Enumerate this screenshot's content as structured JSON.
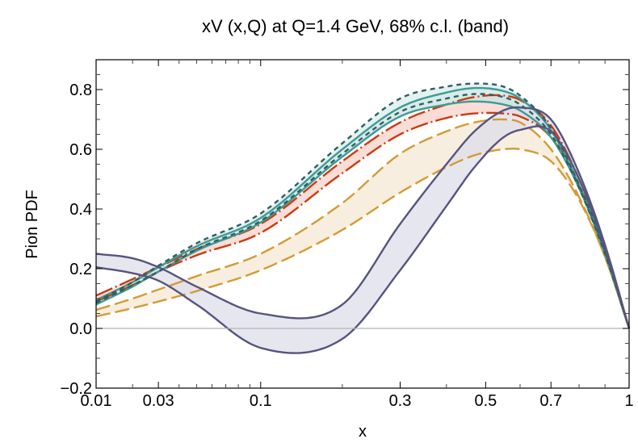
{
  "chart_data": {
    "type": "line",
    "title": "xV (x,Q) at Q=1.4 GeV, 68% c.l. (band)",
    "xlabel": "x",
    "ylabel": "Pion PDF",
    "xscale": "power-0.35",
    "xlim": [
      0.01,
      1
    ],
    "ylim": [
      -0.2,
      0.9
    ],
    "xticks": [
      {
        "value": 0.01,
        "label": "0.01"
      },
      {
        "value": 0.03,
        "label": "0.03"
      },
      {
        "value": 0.1,
        "label": "0.1"
      },
      {
        "value": 0.3,
        "label": "0.3"
      },
      {
        "value": 0.5,
        "label": "0.5"
      },
      {
        "value": 0.7,
        "label": "0.7"
      },
      {
        "value": 1,
        "label": "1"
      }
    ],
    "xminor": [
      0.02,
      0.04,
      0.05,
      0.06,
      0.07,
      0.08,
      0.09,
      0.2,
      0.4,
      0.6,
      0.8,
      0.9
    ],
    "yticks": [
      {
        "value": -0.2,
        "label": "−0.2"
      },
      {
        "value": 0.0,
        "label": "0.0"
      },
      {
        "value": 0.2,
        "label": "0.2"
      },
      {
        "value": 0.4,
        "label": "0.4"
      },
      {
        "value": 0.6,
        "label": "0.6"
      },
      {
        "value": 0.8,
        "label": "0.8"
      }
    ],
    "yminor": [
      -0.15,
      -0.1,
      -0.05,
      0.05,
      0.1,
      0.15,
      0.25,
      0.3,
      0.35,
      0.45,
      0.5,
      0.55,
      0.65,
      0.7,
      0.75,
      0.85
    ],
    "zero_line": true,
    "grid": false,
    "legend": "none",
    "x": [
      0.01,
      0.02,
      0.03,
      0.05,
      0.1,
      0.2,
      0.3,
      0.4,
      0.47,
      0.55,
      0.6,
      0.7,
      0.8,
      0.9,
      1.0
    ],
    "series": [
      {
        "name": "band-gold-dashed",
        "line_color": "#d39b35",
        "fill_color": "#f5e8d4",
        "dash": "long",
        "upper": [
          0.062,
          0.1,
          0.13,
          0.175,
          0.25,
          0.42,
          0.585,
          0.66,
          0.69,
          0.7,
          0.69,
          0.6,
          0.44,
          0.24,
          0.0
        ],
        "lower": [
          0.04,
          0.068,
          0.09,
          0.125,
          0.195,
          0.33,
          0.455,
          0.54,
          0.58,
          0.6,
          0.6,
          0.56,
          0.43,
          0.24,
          0.0
        ]
      },
      {
        "name": "band-red-dashdot",
        "line_color": "#cc3a0f",
        "fill_color": "#f7d2c8",
        "dash": "dashdot",
        "upper": [
          0.11,
          0.165,
          0.205,
          0.265,
          0.35,
          0.56,
          0.69,
          0.75,
          0.775,
          0.78,
          0.765,
          0.68,
          0.5,
          0.27,
          0.0
        ],
        "lower": [
          0.09,
          0.145,
          0.19,
          0.245,
          0.32,
          0.52,
          0.65,
          0.705,
          0.72,
          0.72,
          0.71,
          0.64,
          0.48,
          0.26,
          0.0
        ]
      },
      {
        "name": "band-teal-solid",
        "line_color": "#3e9a96",
        "fill_color": "#c8e4e2",
        "dash": "solid",
        "upper": [
          0.095,
          0.155,
          0.205,
          0.275,
          0.37,
          0.6,
          0.74,
          0.79,
          0.805,
          0.795,
          0.77,
          0.665,
          0.48,
          0.26,
          0.0
        ],
        "lower": [
          0.08,
          0.14,
          0.19,
          0.26,
          0.355,
          0.575,
          0.71,
          0.75,
          0.76,
          0.75,
          0.73,
          0.64,
          0.47,
          0.25,
          0.0
        ]
      },
      {
        "name": "band-darkteal-dashed",
        "line_color": "#2f5f64",
        "fill_color": "#d9ecea",
        "dash": "short",
        "upper": [
          0.09,
          0.155,
          0.21,
          0.285,
          0.385,
          0.62,
          0.77,
          0.81,
          0.82,
          0.81,
          0.78,
          0.67,
          0.48,
          0.26,
          0.0
        ],
        "lower": [
          0.085,
          0.145,
          0.19,
          0.265,
          0.36,
          0.585,
          0.725,
          0.77,
          0.785,
          0.775,
          0.75,
          0.65,
          0.47,
          0.25,
          0.0
        ]
      },
      {
        "name": "band-purple-solid",
        "line_color": "#56547f",
        "fill_color": "#dddde8",
        "dash": "solid",
        "upper": [
          0.25,
          0.235,
          0.205,
          0.14,
          0.05,
          0.08,
          0.35,
          0.55,
          0.66,
          0.73,
          0.74,
          0.7,
          0.52,
          0.28,
          0.0
        ],
        "lower": [
          0.205,
          0.185,
          0.16,
          0.08,
          -0.065,
          -0.035,
          0.195,
          0.41,
          0.54,
          0.64,
          0.665,
          0.66,
          0.5,
          0.27,
          0.0
        ]
      }
    ]
  }
}
